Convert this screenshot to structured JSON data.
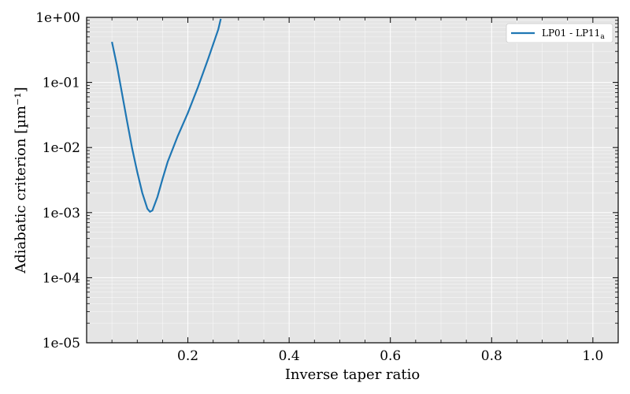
{
  "chart_data": {
    "type": "line",
    "xlabel": "Inverse taper ratio",
    "ylabel": "Adiabatic criterion [µm⁻¹]",
    "xlim": [
      0.0,
      1.05
    ],
    "ylim": [
      1e-05,
      1
    ],
    "yscale": "log",
    "grid": true,
    "legend": "top-right",
    "x_ticks": [
      0.2,
      0.4,
      0.6,
      0.8,
      1.0
    ],
    "x_tick_labels": [
      "0.2",
      "0.4",
      "0.6",
      "0.8",
      "1.0"
    ],
    "y_ticks": [
      1e-05,
      0.0001,
      0.001,
      0.01,
      0.1,
      1
    ],
    "y_tick_labels": [
      "1e-05",
      "1e-04",
      "1e-03",
      "1e-02",
      "1e-01",
      "1e+00"
    ],
    "background_color": "#e5e5e5",
    "grid_color": "#ffffff",
    "series": [
      {
        "name": "LP01 - LP11",
        "name_subscript": "a",
        "color": "#1f77b4",
        "x": [
          0.05,
          0.06,
          0.07,
          0.08,
          0.09,
          0.1,
          0.11,
          0.12,
          0.125,
          0.13,
          0.14,
          0.15,
          0.16,
          0.18,
          0.2,
          0.22,
          0.24,
          0.26,
          0.265
        ],
        "y": [
          0.42,
          0.18,
          0.067,
          0.025,
          0.0096,
          0.0042,
          0.002,
          0.00115,
          0.00103,
          0.00108,
          0.00175,
          0.0033,
          0.006,
          0.015,
          0.034,
          0.085,
          0.23,
          0.65,
          0.95
        ]
      }
    ]
  }
}
